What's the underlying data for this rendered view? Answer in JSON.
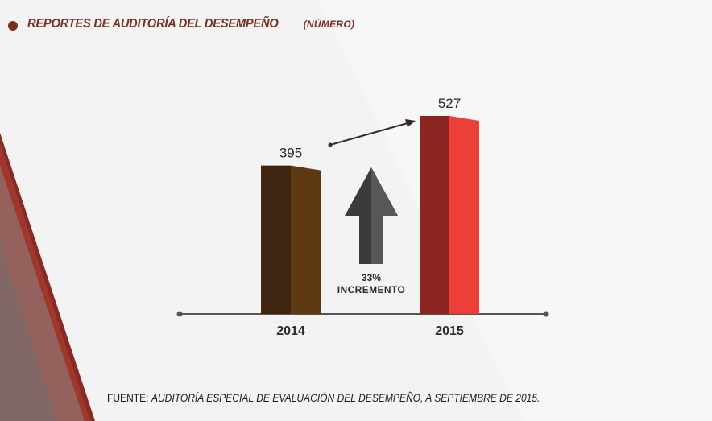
{
  "header": {
    "title": "REPORTES DE AUDITORÍA DEL DESEMPEÑO",
    "subtitle": "(NÚMERO)"
  },
  "source": {
    "label": "FUENTE:",
    "text": "AUDITORÍA ESPECIAL DE EVALUACIÓN DEL DESEMPEÑO, A SEPTIEMBRE DE 2015."
  },
  "colors": {
    "bar_2014_dark": "#3e2611",
    "bar_2014_light": "#5f3914",
    "bar_2015_dark": "#8c2422",
    "bar_2015_light": "#ec3f37",
    "arrow_dark": "#3b3b3d",
    "arrow_light": "#57575a",
    "axis": "#555555",
    "accent": "#7a2e22"
  },
  "annotation": {
    "percent": "33%",
    "label": "INCREMENTO",
    "icon": "up-arrow-icon"
  },
  "chart_data": {
    "type": "bar",
    "categories": [
      "2014",
      "2015"
    ],
    "values": [
      395,
      527
    ],
    "ylim": [
      0,
      527
    ]
  }
}
